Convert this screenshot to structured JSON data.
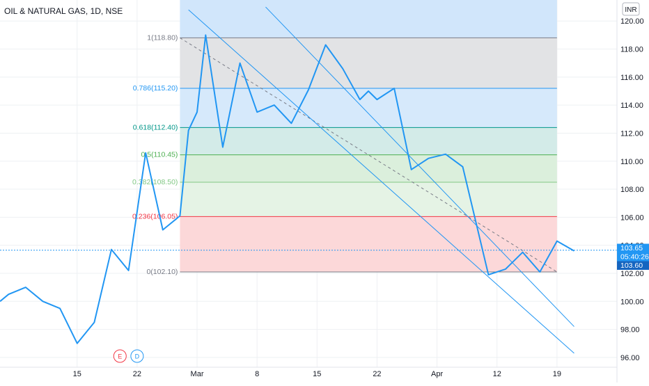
{
  "header": {
    "title": "OIL & NATURAL GAS, 1D, NSE"
  },
  "currency": "INR",
  "chart_data": {
    "type": "line",
    "title": "OIL & NATURAL GAS, 1D, NSE",
    "y_tick_labels": [
      "96.00",
      "98.00",
      "100.00",
      "102.00",
      "104.00",
      "106.00",
      "108.00",
      "110.00",
      "112.00",
      "114.00",
      "116.00",
      "118.00",
      "120.00"
    ],
    "ylim": [
      95.3,
      121.5
    ],
    "x_tick_labels": [
      "15",
      "22",
      "Mar",
      "8",
      "15",
      "22",
      "Apr",
      "12",
      "19"
    ],
    "x_tick_day_index": [
      10,
      17,
      24,
      31,
      38,
      45,
      52,
      59,
      66
    ],
    "xlim_day_index": [
      1,
      73
    ],
    "grid": true,
    "series": [
      {
        "values_day_index": [
          1,
          2,
          4,
          6,
          8,
          10,
          12,
          14,
          16,
          18,
          20,
          22,
          23,
          24,
          25,
          27,
          29,
          31,
          33,
          35,
          37,
          39,
          41,
          43,
          44,
          45,
          47,
          49,
          51,
          53,
          55,
          58,
          60,
          62,
          64,
          66,
          68
        ],
        "values": [
          100.0,
          100.5,
          101.0,
          100.0,
          99.5,
          97.0,
          98.5,
          103.7,
          102.2,
          110.6,
          105.1,
          106.1,
          112.2,
          113.5,
          119.0,
          111.0,
          117.0,
          113.5,
          114.0,
          112.7,
          115.1,
          118.3,
          116.6,
          114.4,
          115.0,
          114.4,
          115.2,
          109.4,
          110.2,
          110.5,
          109.6,
          101.9,
          102.3,
          103.5,
          102.1,
          104.3,
          103.6
        ]
      }
    ],
    "fibonacci": {
      "levels": [
        {
          "label": "1(118.80)",
          "value": 118.8,
          "color": "#787b86"
        },
        {
          "label": "0.786(115.20)",
          "value": 115.2,
          "color": "#2196f3"
        },
        {
          "label": "0.618(112.40)",
          "value": 112.4,
          "color": "#009688"
        },
        {
          "label": "0.5(110.45)",
          "value": 110.45,
          "color": "#4caf50"
        },
        {
          "label": "0.382(108.50)",
          "value": 108.5,
          "color": "#81c784"
        },
        {
          "label": "0.236(106.05)",
          "value": 106.05,
          "color": "#f23645"
        },
        {
          "label": "0(102.10)",
          "value": 102.1,
          "color": "#787b86"
        }
      ],
      "zone_fills": [
        {
          "from": 118.8,
          "to": 121.5,
          "color": "#d1e6fb"
        },
        {
          "from": 115.2,
          "to": 118.8,
          "color": "#e2e3e5"
        },
        {
          "from": 112.4,
          "to": 115.2,
          "color": "#d6e9fb"
        },
        {
          "from": 110.45,
          "to": 112.4,
          "color": "#d3ebe8"
        },
        {
          "from": 108.5,
          "to": 110.45,
          "color": "#dbefdc"
        },
        {
          "from": 106.05,
          "to": 108.5,
          "color": "#e5f3e5"
        },
        {
          "from": 102.1,
          "to": 106.05,
          "color": "#fcd8d9"
        }
      ],
      "start_day_index": 22,
      "end_day_index": 66
    },
    "trend_lines": [
      {
        "from": [
          23,
          120.8
        ],
        "to": [
          68,
          96.3
        ]
      },
      {
        "from": [
          32,
          121.0
        ],
        "to": [
          68,
          98.2
        ]
      }
    ],
    "diagonal_dashed": {
      "from": [
        22,
        118.8
      ],
      "to": [
        66,
        102.1
      ]
    },
    "last_price_value": 103.65,
    "price_tags": [
      {
        "text": "103.65",
        "color": "#2196f3"
      },
      {
        "text": "05:40:26",
        "color": "#2196f3"
      },
      {
        "text": "103.60",
        "color": "#1565c0"
      }
    ],
    "event_markers": [
      {
        "letter": "E",
        "day_index": 15,
        "color": "#f23645"
      },
      {
        "letter": "D",
        "day_index": 17,
        "color": "#2196f3"
      }
    ]
  }
}
